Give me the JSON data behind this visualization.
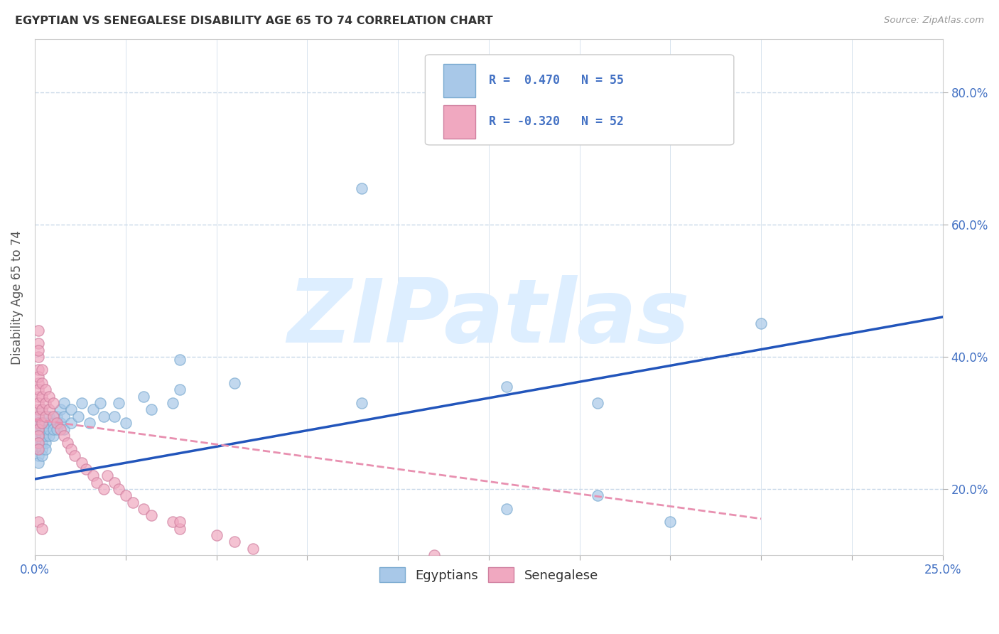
{
  "title": "EGYPTIAN VS SENEGALESE DISABILITY AGE 65 TO 74 CORRELATION CHART",
  "source": "Source: ZipAtlas.com",
  "ylabel": "Disability Age 65 to 74",
  "xlim": [
    0.0,
    0.25
  ],
  "ylim": [
    0.1,
    0.88
  ],
  "xticks": [
    0.0,
    0.025,
    0.05,
    0.075,
    0.1,
    0.125,
    0.15,
    0.175,
    0.2,
    0.225,
    0.25
  ],
  "yticks": [
    0.2,
    0.4,
    0.6,
    0.8
  ],
  "yticklabels_right": [
    "20.0%",
    "40.0%",
    "60.0%",
    "80.0%"
  ],
  "egyptian_color": "#a8c8e8",
  "senegalese_color": "#f0a8c0",
  "trend_egyptian_color": "#2255bb",
  "trend_senegalese_color": "#e890b0",
  "watermark": "ZIPatlas",
  "watermark_color": "#ddeeff",
  "background_color": "#ffffff",
  "grid_color": "#c8d8e8",
  "egyptians_x": [
    0.001,
    0.001,
    0.001,
    0.001,
    0.001,
    0.001,
    0.001,
    0.001,
    0.002,
    0.002,
    0.002,
    0.002,
    0.002,
    0.002,
    0.002,
    0.003,
    0.003,
    0.003,
    0.003,
    0.003,
    0.004,
    0.004,
    0.004,
    0.004,
    0.005,
    0.005,
    0.005,
    0.006,
    0.006,
    0.007,
    0.007,
    0.008,
    0.008,
    0.008,
    0.01,
    0.01,
    0.012,
    0.013,
    0.015,
    0.016,
    0.018,
    0.019,
    0.022,
    0.023,
    0.025,
    0.03,
    0.032,
    0.038,
    0.04,
    0.055,
    0.09,
    0.13,
    0.155,
    0.175,
    0.2
  ],
  "egyptians_y": [
    0.28,
    0.26,
    0.25,
    0.27,
    0.29,
    0.31,
    0.3,
    0.24,
    0.27,
    0.26,
    0.29,
    0.28,
    0.25,
    0.3,
    0.32,
    0.27,
    0.26,
    0.28,
    0.29,
    0.3,
    0.28,
    0.3,
    0.29,
    0.31,
    0.28,
    0.3,
    0.29,
    0.29,
    0.31,
    0.3,
    0.32,
    0.31,
    0.29,
    0.33,
    0.32,
    0.3,
    0.31,
    0.33,
    0.3,
    0.32,
    0.33,
    0.31,
    0.31,
    0.33,
    0.3,
    0.34,
    0.32,
    0.33,
    0.35,
    0.36,
    0.33,
    0.17,
    0.19,
    0.15,
    0.45
  ],
  "senegalese_x": [
    0.001,
    0.001,
    0.001,
    0.001,
    0.001,
    0.001,
    0.001,
    0.001,
    0.001,
    0.001,
    0.001,
    0.001,
    0.001,
    0.001,
    0.001,
    0.002,
    0.002,
    0.002,
    0.002,
    0.002,
    0.003,
    0.003,
    0.003,
    0.004,
    0.004,
    0.005,
    0.005,
    0.006,
    0.007,
    0.008,
    0.009,
    0.01,
    0.011,
    0.013,
    0.014,
    0.016,
    0.017,
    0.019,
    0.02,
    0.022,
    0.023,
    0.025,
    0.027,
    0.03,
    0.032,
    0.038,
    0.04,
    0.05,
    0.055,
    0.06,
    0.11
  ],
  "senegalese_y": [
    0.42,
    0.4,
    0.38,
    0.36,
    0.34,
    0.32,
    0.3,
    0.29,
    0.28,
    0.27,
    0.26,
    0.31,
    0.33,
    0.35,
    0.37,
    0.38,
    0.36,
    0.34,
    0.32,
    0.3,
    0.35,
    0.33,
    0.31,
    0.32,
    0.34,
    0.31,
    0.33,
    0.3,
    0.29,
    0.28,
    0.27,
    0.26,
    0.25,
    0.24,
    0.23,
    0.22,
    0.21,
    0.2,
    0.22,
    0.21,
    0.2,
    0.19,
    0.18,
    0.17,
    0.16,
    0.15,
    0.14,
    0.13,
    0.12,
    0.11,
    0.1
  ],
  "extra_egyptian_points": [
    [
      0.04,
      0.395
    ],
    [
      0.09,
      0.655
    ],
    [
      0.13,
      0.355
    ],
    [
      0.155,
      0.33
    ]
  ],
  "extra_senegalese_points": [
    [
      0.001,
      0.44
    ],
    [
      0.001,
      0.41
    ],
    [
      0.001,
      0.15
    ],
    [
      0.002,
      0.14
    ],
    [
      0.04,
      0.15
    ]
  ],
  "egyptian_trend_x": [
    0.0,
    0.25
  ],
  "egyptian_trend_y": [
    0.215,
    0.46
  ],
  "senegalese_trend_x": [
    0.0,
    0.2
  ],
  "senegalese_trend_y": [
    0.305,
    0.155
  ]
}
